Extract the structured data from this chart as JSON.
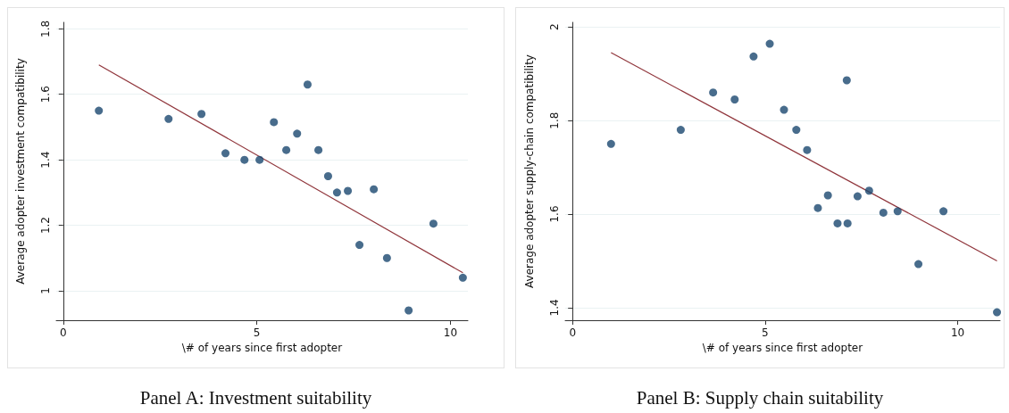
{
  "chart_data": [
    {
      "type": "scatter",
      "title": "Panel A: Investment suitability",
      "xlabel": "\\# of years since first adopter",
      "ylabel": "Average adopter investment compatibility",
      "xlim": [
        -0.18,
        10.45
      ],
      "xticks": [
        0,
        5,
        10
      ],
      "ylim": [
        0.91,
        1.82
      ],
      "yticks": [
        1,
        1.2,
        1.4,
        1.6,
        1.8
      ],
      "grid": "y",
      "series": [
        {
          "marker": "circle",
          "color": "#1a476f",
          "x": [
            0.92,
            2.72,
            3.57,
            4.19,
            4.68,
            5.07,
            5.44,
            5.76,
            6.04,
            6.31,
            6.59,
            6.84,
            7.07,
            7.35,
            7.65,
            8.02,
            8.36,
            8.92,
            9.56,
            10.32
          ],
          "values": [
            1.55,
            1.525,
            1.54,
            1.42,
            1.4,
            1.4,
            1.515,
            1.43,
            1.48,
            1.63,
            1.43,
            1.35,
            1.3,
            1.305,
            1.14,
            1.31,
            1.1,
            0.94,
            1.205,
            1.04
          ]
        },
        {
          "type": "line",
          "marker": "none",
          "color": "#90353b",
          "line_style": "solid",
          "x": [
            0.92,
            10.32
          ],
          "values": [
            1.69,
            1.055
          ]
        }
      ]
    },
    {
      "type": "scatter",
      "title": "Panel B: Supply chain suitability",
      "xlabel": "\\# of years since first adopter",
      "ylabel": "Average adopter supply-chain compatibility",
      "xlim": [
        -0.19,
        11.1
      ],
      "xticks": [
        0,
        5,
        10
      ],
      "ylim": [
        1.373,
        2.01
      ],
      "yticks": [
        1.4,
        1.6,
        1.8,
        2
      ],
      "grid": "y",
      "series": [
        {
          "marker": "circle",
          "color": "#1a476f",
          "x": [
            1.0,
            2.81,
            3.65,
            4.21,
            4.7,
            5.12,
            5.49,
            5.81,
            6.09,
            6.37,
            6.63,
            6.88,
            7.12,
            7.14,
            7.4,
            7.7,
            8.07,
            8.44,
            8.98,
            9.63,
            11.02
          ],
          "values": [
            1.75,
            1.78,
            1.86,
            1.845,
            1.937,
            1.964,
            1.823,
            1.78,
            1.737,
            1.613,
            1.64,
            1.58,
            1.886,
            1.58,
            1.638,
            1.65,
            1.603,
            1.606,
            1.493,
            1.606,
            1.39
          ]
        },
        {
          "type": "line",
          "marker": "none",
          "color": "#90353b",
          "line_style": "solid",
          "x": [
            1.0,
            11.02
          ],
          "values": [
            1.945,
            1.5
          ]
        }
      ]
    }
  ]
}
